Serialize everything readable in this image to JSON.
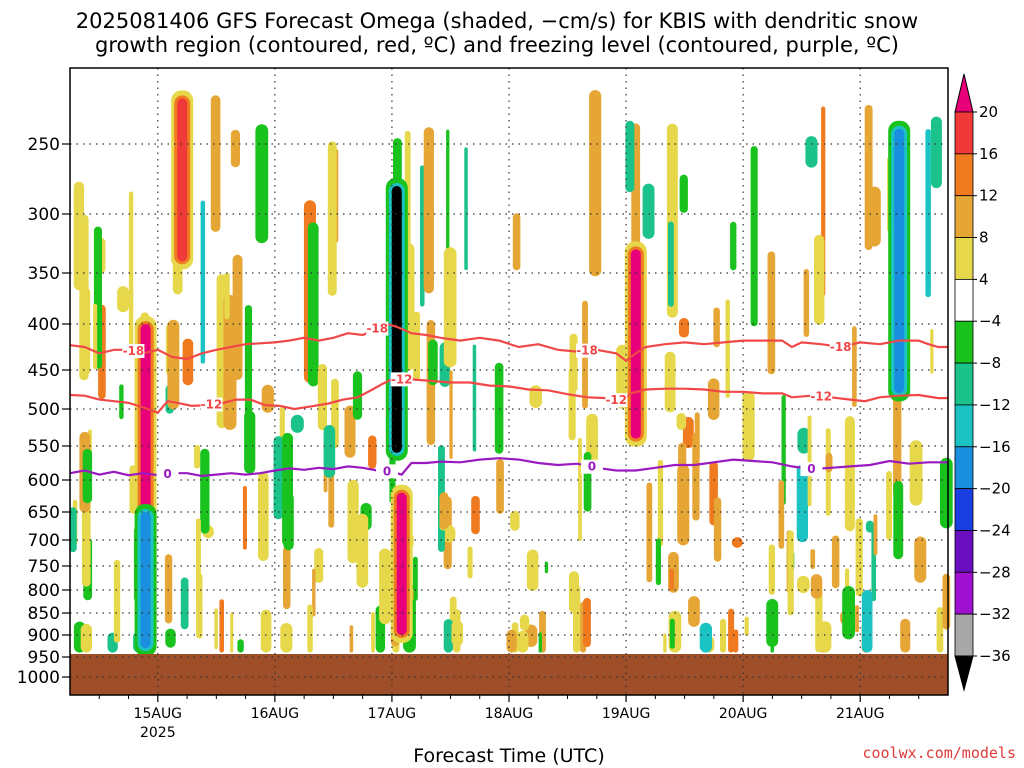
{
  "chart_data": {
    "type": "heatmap",
    "title_lines": [
      "2025081406 GFS Forecast Omega (shaded, −cm/s) for KBIS with dendritic snow",
      "growth region (contoured, red, ºC) and freezing level (contoured, purple, ºC)"
    ],
    "xlabel": "Forecast Time (UTC)",
    "credit": "coolwx.com/models",
    "y_axis": {
      "unit": "hPa",
      "ticks": [
        250,
        300,
        350,
        400,
        450,
        500,
        550,
        600,
        650,
        700,
        750,
        800,
        850,
        900,
        950,
        1000
      ],
      "range": [
        200,
        1040
      ]
    },
    "x_axis": {
      "range_hours": [
        0,
        180
      ],
      "ticks": [
        {
          "label": "15AUG",
          "sublabel": "2025",
          "hour": 18
        },
        {
          "label": "16AUG",
          "hour": 42
        },
        {
          "label": "17AUG",
          "hour": 66
        },
        {
          "label": "18AUG",
          "hour": 90
        },
        {
          "label": "19AUG",
          "hour": 114
        },
        {
          "label": "20AUG",
          "hour": 138
        },
        {
          "label": "21AUG",
          "hour": 162
        }
      ]
    },
    "colorbar": {
      "labels": [
        "20",
        "16",
        "12",
        "8",
        "4",
        "−4",
        "−8",
        "−12",
        "−16",
        "−20",
        "−24",
        "−28",
        "−32",
        "−36"
      ],
      "colors": [
        "#e8007a",
        "#f03a3a",
        "#f07a20",
        "#e6a635",
        "#e6d84a",
        "#ffffff",
        "#19c21d",
        "#1bc38a",
        "#1bc3c3",
        "#1a8fe0",
        "#1a3fe0",
        "#6a0fc0",
        "#a010d0",
        "#a8a8a8",
        "#000000"
      ]
    },
    "isotherms": [
      {
        "name": "-18",
        "color": "#f04848",
        "points": [
          [
            0,
            423
          ],
          [
            3,
            425
          ],
          [
            6,
            432
          ],
          [
            9,
            428
          ],
          [
            12,
            428
          ],
          [
            15,
            432
          ],
          [
            18,
            428
          ],
          [
            21,
            436
          ],
          [
            24,
            438
          ],
          [
            27,
            432
          ],
          [
            30,
            428
          ],
          [
            33,
            425
          ],
          [
            36,
            422
          ],
          [
            39,
            421
          ],
          [
            42,
            420
          ],
          [
            45,
            418
          ],
          [
            48,
            415
          ],
          [
            51,
            418
          ],
          [
            54,
            415
          ],
          [
            57,
            410
          ],
          [
            60,
            412
          ],
          [
            63,
            405
          ],
          [
            65,
            400
          ],
          [
            67,
            403
          ],
          [
            70,
            410
          ],
          [
            73,
            412
          ],
          [
            76,
            415
          ],
          [
            80,
            418
          ],
          [
            84,
            415
          ],
          [
            88,
            418
          ],
          [
            92,
            425
          ],
          [
            96,
            422
          ],
          [
            100,
            428
          ],
          [
            104,
            430
          ],
          [
            108,
            428
          ],
          [
            112,
            432
          ],
          [
            114,
            440
          ],
          [
            116,
            432
          ],
          [
            118,
            425
          ],
          [
            122,
            422
          ],
          [
            126,
            420
          ],
          [
            130,
            422
          ],
          [
            134,
            420
          ],
          [
            138,
            418
          ],
          [
            142,
            418
          ],
          [
            146,
            418
          ],
          [
            148,
            425
          ],
          [
            150,
            420
          ],
          [
            154,
            422
          ],
          [
            158,
            425
          ],
          [
            162,
            420
          ],
          [
            166,
            422
          ],
          [
            170,
            418
          ],
          [
            174,
            418
          ],
          [
            176,
            422
          ],
          [
            178,
            425
          ],
          [
            180,
            425
          ]
        ],
        "label_hours": [
          13,
          63,
          106,
          158
        ]
      },
      {
        "name": "-12",
        "color": "#f04848",
        "points": [
          [
            0,
            482
          ],
          [
            3,
            483
          ],
          [
            6,
            488
          ],
          [
            9,
            490
          ],
          [
            12,
            492
          ],
          [
            15,
            498
          ],
          [
            18,
            505
          ],
          [
            20,
            490
          ],
          [
            22,
            492
          ],
          [
            25,
            496
          ],
          [
            28,
            495
          ],
          [
            31,
            493
          ],
          [
            34,
            488
          ],
          [
            37,
            488
          ],
          [
            40,
            495
          ],
          [
            43,
            496
          ],
          [
            46,
            500
          ],
          [
            50,
            496
          ],
          [
            53,
            493
          ],
          [
            56,
            488
          ],
          [
            59,
            485
          ],
          [
            62,
            475
          ],
          [
            64,
            468
          ],
          [
            66,
            462
          ],
          [
            70,
            462
          ],
          [
            74,
            464
          ],
          [
            78,
            466
          ],
          [
            82,
            466
          ],
          [
            86,
            470
          ],
          [
            90,
            471
          ],
          [
            94,
            475
          ],
          [
            98,
            476
          ],
          [
            102,
            481
          ],
          [
            106,
            485
          ],
          [
            110,
            486
          ],
          [
            113,
            490
          ],
          [
            115,
            480
          ],
          [
            118,
            475
          ],
          [
            122,
            474
          ],
          [
            126,
            474
          ],
          [
            130,
            475
          ],
          [
            134,
            478
          ],
          [
            138,
            478
          ],
          [
            142,
            480
          ],
          [
            146,
            480
          ],
          [
            148,
            485
          ],
          [
            152,
            483
          ],
          [
            156,
            485
          ],
          [
            160,
            488
          ],
          [
            163,
            490
          ],
          [
            166,
            485
          ],
          [
            170,
            483
          ],
          [
            174,
            482
          ],
          [
            178,
            486
          ],
          [
            180,
            486
          ]
        ],
        "label_hours": [
          29,
          68,
          112,
          154
        ]
      },
      {
        "name": "0",
        "color": "#9a1ac0",
        "points": [
          [
            0,
            590
          ],
          [
            3,
            586
          ],
          [
            6,
            592
          ],
          [
            9,
            588
          ],
          [
            12,
            593
          ],
          [
            15,
            590
          ],
          [
            18,
            593
          ],
          [
            21,
            590
          ],
          [
            24,
            590
          ],
          [
            27,
            594
          ],
          [
            30,
            592
          ],
          [
            33,
            590
          ],
          [
            36,
            592
          ],
          [
            39,
            590
          ],
          [
            42,
            586
          ],
          [
            45,
            583
          ],
          [
            48,
            585
          ],
          [
            51,
            582
          ],
          [
            54,
            584
          ],
          [
            57,
            580
          ],
          [
            60,
            582
          ],
          [
            63,
            586
          ],
          [
            66,
            588
          ],
          [
            68,
            592
          ],
          [
            70,
            575
          ],
          [
            73,
            575
          ],
          [
            76,
            573
          ],
          [
            80,
            574
          ],
          [
            84,
            570
          ],
          [
            88,
            568
          ],
          [
            92,
            570
          ],
          [
            96,
            575
          ],
          [
            100,
            578
          ],
          [
            104,
            576
          ],
          [
            108,
            582
          ],
          [
            112,
            586
          ],
          [
            116,
            586
          ],
          [
            120,
            582
          ],
          [
            124,
            578
          ],
          [
            128,
            578
          ],
          [
            132,
            574
          ],
          [
            136,
            570
          ],
          [
            140,
            572
          ],
          [
            144,
            574
          ],
          [
            148,
            580
          ],
          [
            152,
            584
          ],
          [
            156,
            582
          ],
          [
            160,
            580
          ],
          [
            164,
            578
          ],
          [
            168,
            572
          ],
          [
            172,
            576
          ],
          [
            176,
            574
          ],
          [
            180,
            574
          ]
        ],
        "label_hours": [
          20,
          65,
          107,
          152
        ]
      }
    ],
    "omega_features": [
      {
        "hour": 15.5,
        "p_top": 400,
        "p_bottom": 900,
        "value": 20
      },
      {
        "hour": 15.5,
        "p_top": 650,
        "p_bottom": 930,
        "value": -16
      },
      {
        "hour": 23,
        "p_top": 220,
        "p_bottom": 340,
        "value": 16
      },
      {
        "hour": 67,
        "p_top": 280,
        "p_bottom": 560,
        "value": -36
      },
      {
        "hour": 68,
        "p_top": 620,
        "p_bottom": 900,
        "value": 20
      },
      {
        "hour": 116,
        "p_top": 330,
        "p_bottom": 540,
        "value": 20
      },
      {
        "hour": 170,
        "p_top": 240,
        "p_bottom": 480,
        "value": -16
      }
    ]
  }
}
